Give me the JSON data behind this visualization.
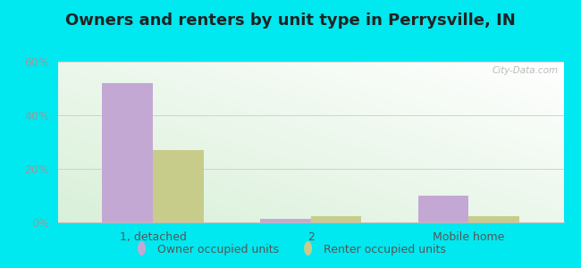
{
  "title": "Owners and renters by unit type in Perrysville, IN",
  "categories": [
    "1, detached",
    "2",
    "Mobile home"
  ],
  "owner_values": [
    52,
    1.5,
    10
  ],
  "renter_values": [
    27,
    2.5,
    2.2
  ],
  "owner_color": "#c4a8d4",
  "renter_color": "#c8cc8a",
  "ylim": [
    0,
    60
  ],
  "yticks": [
    0,
    20,
    40,
    60
  ],
  "ytick_labels": [
    "0%",
    "20%",
    "40%",
    "60%"
  ],
  "bar_width": 0.32,
  "outer_color": "#00e8f0",
  "plot_bg_left": "#daeede",
  "plot_bg_right": "#f5faf5",
  "watermark": "City-Data.com",
  "legend_owner": "Owner occupied units",
  "legend_renter": "Renter occupied units",
  "title_fontsize": 13,
  "axis_fontsize": 9,
  "legend_fontsize": 9
}
